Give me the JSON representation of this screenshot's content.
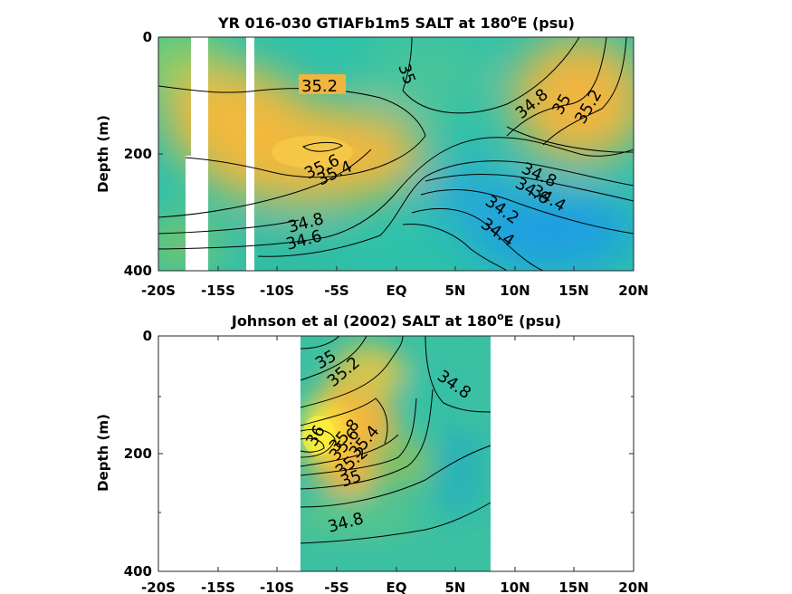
{
  "chart_data": [
    {
      "type": "heatmap",
      "title": "YR 016-030 GTIAFb1m5 SALT at 180",
      "title_sup": "o",
      "title_tail": "E (psu)",
      "ylabel": "Depth (m)",
      "xlim": [
        -20,
        20
      ],
      "ylim": [
        0,
        400
      ],
      "x_ticks": [
        -20,
        -15,
        -10,
        -5,
        0,
        5,
        10,
        15,
        20
      ],
      "x_tick_labels": [
        "-20S",
        "-15S",
        "-10S",
        "-5S",
        "EQ",
        "5N",
        "10N",
        "15N",
        "20N"
      ],
      "y_ticks": [
        0,
        200,
        400
      ],
      "y_tick_labels": [
        "0",
        "200",
        "400"
      ],
      "colors": {
        "low": "#1f9fe3",
        "mid": "#22c2a8",
        "high": "#f4b83a",
        "max": "#ffe83a"
      },
      "data_gaps": [
        {
          "x": [
            -18.2,
            -16.8
          ],
          "y": [
            0,
            400
          ]
        },
        {
          "x": [
            -12.2,
            -11.5
          ],
          "y": [
            0,
            400
          ]
        }
      ],
      "salinity_features": [
        {
          "x": -7,
          "y": 190,
          "value": 35.6
        },
        {
          "x": 13,
          "y": 300,
          "value": 34.1
        },
        {
          "x": 18,
          "y": 80,
          "value": 35.3
        },
        {
          "x": -18,
          "y": 280,
          "value": 34.7
        }
      ],
      "contour_labels": [
        {
          "text": "35.2",
          "x": -6.5,
          "y": 85
        },
        {
          "text": "35",
          "x": 1.3,
          "y": 75
        },
        {
          "text": "35.6",
          "x": -5.6,
          "y": 220
        },
        {
          "text": "35.4",
          "x": -4.8,
          "y": 238
        },
        {
          "text": "34.8",
          "x": -7.2,
          "y": 318
        },
        {
          "text": "34.6",
          "x": -7.3,
          "y": 340
        },
        {
          "text": "34.8",
          "x": 11.0,
          "y": 115
        },
        {
          "text": "35",
          "x": 14.3,
          "y": 118
        },
        {
          "text": "35.2",
          "x": 16.5,
          "y": 120
        },
        {
          "text": "34.8",
          "x": 12.5,
          "y": 235
        },
        {
          "text": "34.6",
          "x": 12.0,
          "y": 255
        },
        {
          "text": "34.4",
          "x": 13.0,
          "y": 272
        },
        {
          "text": "34.2",
          "x": 9.3,
          "y": 325
        },
        {
          "text": "34.4",
          "x": 8.8,
          "y": 352
        }
      ]
    },
    {
      "type": "heatmap",
      "title": "Johnson et al (2002) SALT at 180",
      "title_sup": "o",
      "title_tail": "E (psu)",
      "ylabel": "Depth (m)",
      "xlim": [
        -20,
        20
      ],
      "ylim": [
        0,
        400
      ],
      "x_ticks": [
        -20,
        -15,
        -10,
        -5,
        0,
        5,
        10,
        15,
        20
      ],
      "x_tick_labels": [
        "-20S",
        "-15S",
        "-10S",
        "-5S",
        "EQ",
        "5N",
        "10N",
        "15N",
        "20N"
      ],
      "y_ticks": [
        0,
        200,
        400
      ],
      "y_tick_labels": [
        "0",
        "200",
        "400"
      ],
      "data_extent": {
        "x": [
          -8,
          8
        ],
        "y": [
          0,
          400
        ]
      },
      "salinity_features": [
        {
          "x": -6,
          "y": 175,
          "value": 36.1
        },
        {
          "x": 6,
          "y": 300,
          "value": 34.7
        },
        {
          "x": 3,
          "y": 120,
          "value": 34.9
        }
      ],
      "contour_labels": [
        {
          "text": "35",
          "x": -5.2,
          "y": 45
        },
        {
          "text": "35.2",
          "x": -4.2,
          "y": 70
        },
        {
          "text": "34.8",
          "x": 4.0,
          "y": 85
        },
        {
          "text": "36",
          "x": -6.2,
          "y": 190
        },
        {
          "text": "35.8",
          "x": -4.2,
          "y": 193
        },
        {
          "text": "35.6",
          "x": -4.6,
          "y": 210
        },
        {
          "text": "35.4",
          "x": -3.3,
          "y": 215
        },
        {
          "text": "35.2",
          "x": -4.4,
          "y": 235
        },
        {
          "text": "35",
          "x": -4.8,
          "y": 255
        },
        {
          "text": "34.8",
          "x": -5.5,
          "y": 315
        }
      ]
    }
  ]
}
